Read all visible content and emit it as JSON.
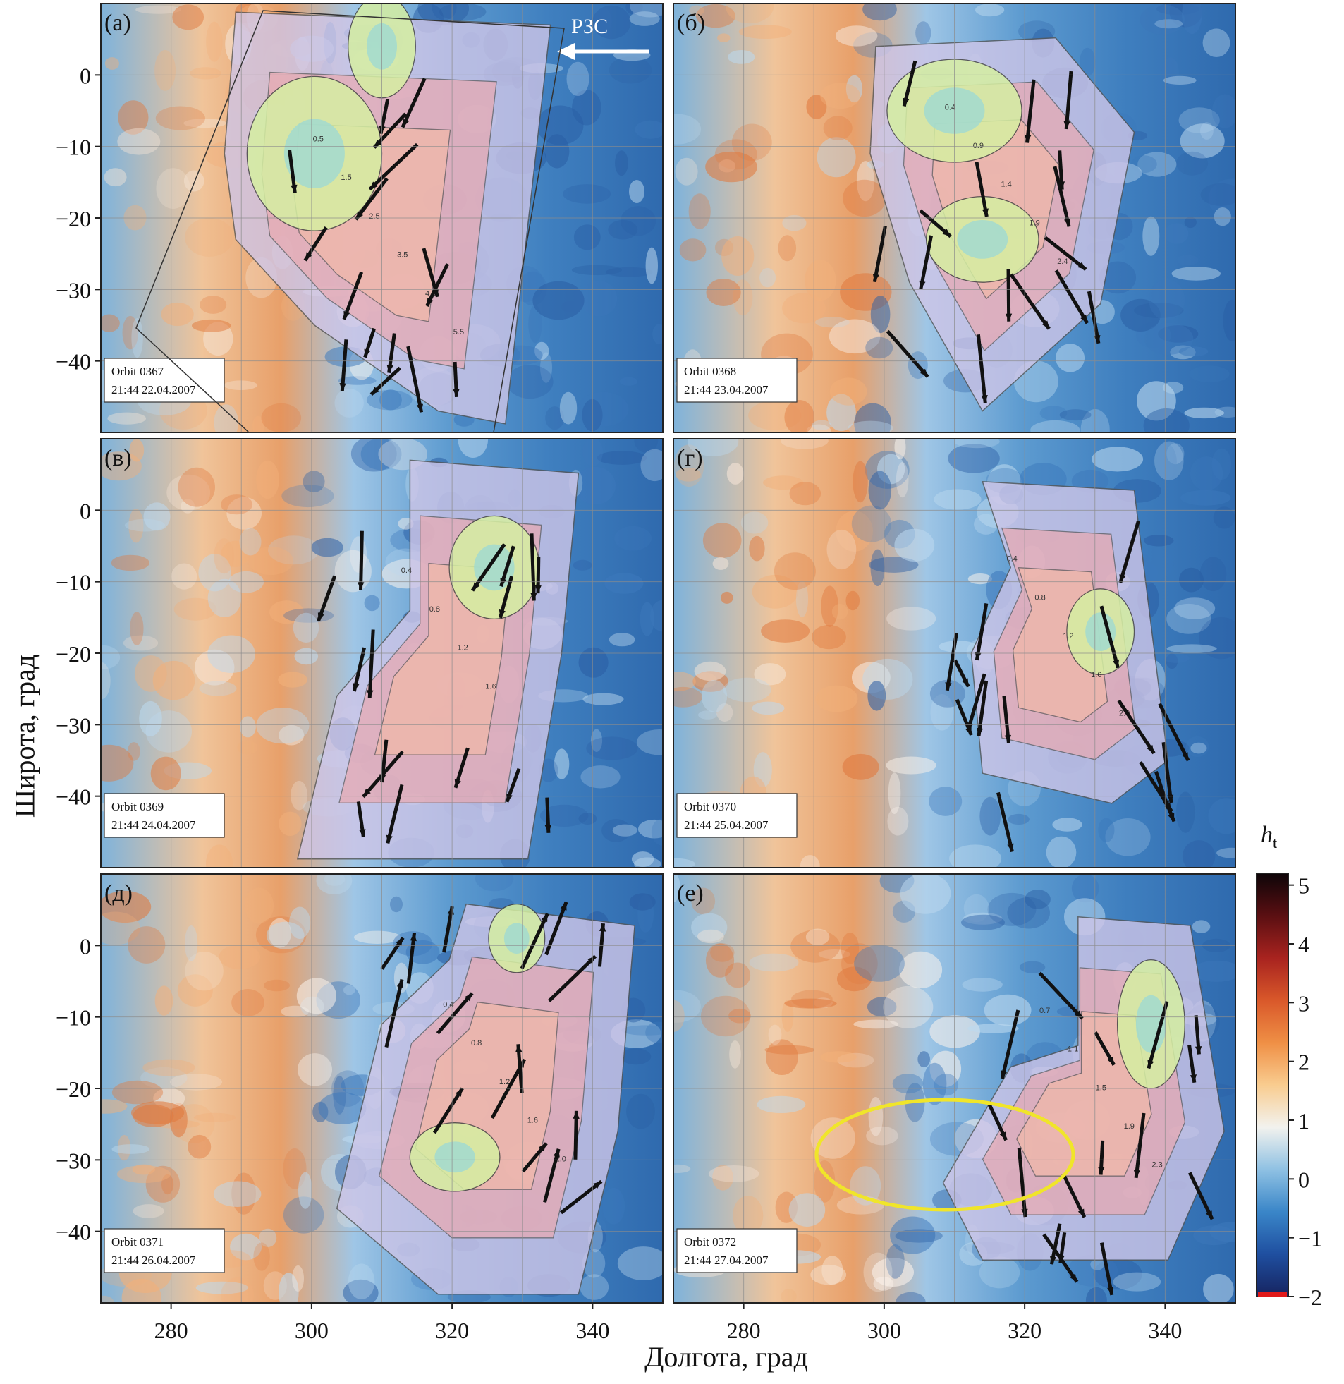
{
  "xlabel": "Долгота, град",
  "ylabel": "Широта, град",
  "colorbar": {
    "title": "h",
    "title_sub": "t",
    "ticks": [
      "5",
      "4",
      "3",
      "2",
      "1",
      "0",
      "−1",
      "−2"
    ],
    "tick_values": [
      5,
      4,
      3,
      2,
      1,
      0,
      -1,
      -2
    ],
    "range": [
      -2,
      5.2
    ],
    "stops": [
      "#16235f",
      "#1f4fa0",
      "#3a86c8",
      "#8fc1e3",
      "#f2f2ee",
      "#f9cc8f",
      "#ef8f45",
      "#d9582a",
      "#a8231f",
      "#5a0f12",
      "#0d0508"
    ]
  },
  "x_ticks": [
    "280",
    "300",
    "320",
    "340"
  ],
  "x_tick_values": [
    280,
    300,
    320,
    340
  ],
  "y_ticks": [
    "0",
    "−10",
    "−20",
    "−30",
    "−40"
  ],
  "y_tick_values": [
    0,
    -10,
    -20,
    -30,
    -40
  ],
  "chart_data": [
    {
      "type": "heatmap",
      "panel": "(а)",
      "title": "(а)",
      "orbit": "Orbit 0367",
      "datetime": "21:44 22.04.2007",
      "annotation": "РЗС",
      "xlim": [
        270,
        350
      ],
      "ylim": [
        -50,
        10
      ],
      "contour_labels": [
        "0.5",
        "1.5",
        "2.5",
        "3.5",
        "4.5",
        "5.5"
      ]
    },
    {
      "type": "heatmap",
      "panel": "(б)",
      "title": "(б)",
      "orbit": "Orbit 0368",
      "datetime": "21:44 23.04.2007",
      "xlim": [
        270,
        350
      ],
      "ylim": [
        -50,
        10
      ],
      "contour_labels": [
        "0.4",
        "0.9",
        "1.4",
        "1.9",
        "2.4"
      ]
    },
    {
      "type": "heatmap",
      "panel": "(в)",
      "title": "(в)",
      "orbit": "Orbit 0369",
      "datetime": "21:44 24.04.2007",
      "xlim": [
        270,
        350
      ],
      "ylim": [
        -50,
        10
      ],
      "contour_labels": [
        "0.4",
        "0.8",
        "1.2",
        "1.6"
      ]
    },
    {
      "type": "heatmap",
      "panel": "(г)",
      "title": "(г)",
      "orbit": "Orbit 0370",
      "datetime": "21:44 25.04.2007",
      "xlim": [
        270,
        350
      ],
      "ylim": [
        -50,
        10
      ],
      "contour_labels": [
        "0.4",
        "0.8",
        "1.2",
        "1.6",
        "2.0"
      ]
    },
    {
      "type": "heatmap",
      "panel": "(д)",
      "title": "(д)",
      "orbit": "Orbit 0371",
      "datetime": "21:44 26.04.2007",
      "xlim": [
        270,
        350
      ],
      "ylim": [
        -50,
        10
      ],
      "contour_labels": [
        "0.4",
        "0.8",
        "1.2",
        "1.6",
        "2.0"
      ]
    },
    {
      "type": "heatmap",
      "panel": "(е)",
      "title": "(е)",
      "orbit": "Orbit 0372",
      "datetime": "21:44 27.04.2007",
      "xlim": [
        270,
        350
      ],
      "ylim": [
        -50,
        10
      ],
      "contour_labels": [
        "0.7",
        "1.1",
        "1.5",
        "1.9",
        "2.3"
      ]
    }
  ]
}
